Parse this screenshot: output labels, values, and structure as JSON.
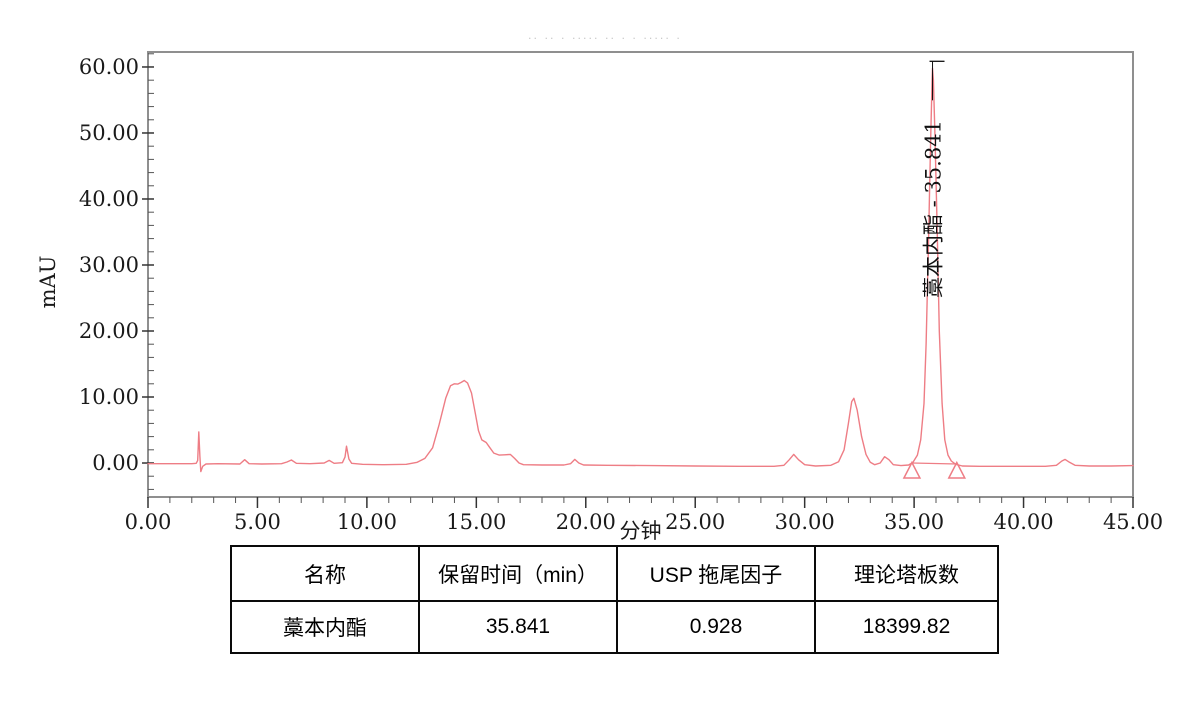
{
  "page": {
    "faint_header": "·· ·· · ····· ·· ·  ·   ····· ·"
  },
  "chart_data": {
    "type": "line",
    "title": "",
    "xlabel": "分钟",
    "ylabel": "mAU",
    "xlim": [
      0,
      45
    ],
    "ylim": [
      -5.15,
      62.27
    ],
    "grid": false,
    "legend": "none",
    "frame_color": "#8f8f8f",
    "trace_color": "#ee7d85",
    "x_major_ticks": [
      0,
      5,
      10,
      15,
      20,
      25,
      30,
      35,
      40,
      45
    ],
    "x_tick_labels": [
      "0.00",
      "5.00",
      "10.00",
      "15.00",
      "20.00",
      "25.00",
      "30.00",
      "35.00",
      "40.00",
      "45.00"
    ],
    "x_minor_step": 1,
    "y_major_ticks": [
      0,
      10,
      20,
      30,
      40,
      50,
      60
    ],
    "y_tick_labels": [
      "0.00",
      "10.00",
      "20.00",
      "30.00",
      "40.00",
      "50.00",
      "60.00"
    ],
    "y_minor_step": 2,
    "peak": {
      "label": "藁本内酯 - 35.841",
      "name": "藁本内酯",
      "retention_min": 35.841,
      "apex_mau": 59.8
    },
    "integration_markers": [
      {
        "t": 34.9
      },
      {
        "t": 36.95
      }
    ],
    "series": [
      {
        "name": "signal",
        "points": [
          [
            0,
            -0.1
          ],
          [
            1.0,
            -0.1
          ],
          [
            2.0,
            -0.1
          ],
          [
            2.2,
            -0.05
          ],
          [
            2.27,
            0.4
          ],
          [
            2.32,
            4.7
          ],
          [
            2.37,
            1.0
          ],
          [
            2.41,
            -1.3
          ],
          [
            2.5,
            -0.5
          ],
          [
            2.65,
            -0.15
          ],
          [
            3.2,
            -0.1
          ],
          [
            4.2,
            -0.15
          ],
          [
            4.42,
            0.5
          ],
          [
            4.62,
            -0.1
          ],
          [
            5.2,
            -0.15
          ],
          [
            6.1,
            -0.1
          ],
          [
            6.35,
            0.15
          ],
          [
            6.55,
            0.45
          ],
          [
            6.78,
            -0.05
          ],
          [
            7.4,
            -0.1
          ],
          [
            8.05,
            0.0
          ],
          [
            8.28,
            0.4
          ],
          [
            8.5,
            -0.05
          ],
          [
            8.88,
            0.05
          ],
          [
            9.0,
            0.9
          ],
          [
            9.07,
            2.55
          ],
          [
            9.18,
            0.6
          ],
          [
            9.3,
            -0.05
          ],
          [
            9.8,
            -0.2
          ],
          [
            10.8,
            -0.25
          ],
          [
            11.8,
            -0.2
          ],
          [
            12.3,
            0.1
          ],
          [
            12.65,
            0.7
          ],
          [
            13.0,
            2.3
          ],
          [
            13.3,
            5.8
          ],
          [
            13.6,
            9.8
          ],
          [
            13.82,
            11.7
          ],
          [
            14.0,
            12.0
          ],
          [
            14.15,
            11.95
          ],
          [
            14.3,
            12.2
          ],
          [
            14.45,
            12.5
          ],
          [
            14.6,
            12.1
          ],
          [
            14.78,
            10.6
          ],
          [
            14.95,
            7.6
          ],
          [
            15.1,
            4.9
          ],
          [
            15.25,
            3.5
          ],
          [
            15.45,
            3.1
          ],
          [
            15.6,
            2.4
          ],
          [
            15.8,
            1.5
          ],
          [
            16.05,
            1.2
          ],
          [
            16.3,
            1.25
          ],
          [
            16.55,
            1.3
          ],
          [
            16.75,
            0.7
          ],
          [
            16.95,
            0.0
          ],
          [
            17.15,
            -0.25
          ],
          [
            18.0,
            -0.3
          ],
          [
            19.0,
            -0.3
          ],
          [
            19.3,
            -0.1
          ],
          [
            19.5,
            0.55
          ],
          [
            19.68,
            0.0
          ],
          [
            19.9,
            -0.3
          ],
          [
            21.0,
            -0.35
          ],
          [
            23.0,
            -0.4
          ],
          [
            25.0,
            -0.45
          ],
          [
            27.0,
            -0.5
          ],
          [
            28.6,
            -0.5
          ],
          [
            29.05,
            -0.35
          ],
          [
            29.3,
            0.5
          ],
          [
            29.5,
            1.3
          ],
          [
            29.72,
            0.5
          ],
          [
            30.0,
            -0.25
          ],
          [
            30.5,
            -0.45
          ],
          [
            31.2,
            -0.35
          ],
          [
            31.55,
            0.2
          ],
          [
            31.8,
            2.0
          ],
          [
            32.0,
            6.0
          ],
          [
            32.15,
            9.3
          ],
          [
            32.25,
            9.8
          ],
          [
            32.4,
            8.0
          ],
          [
            32.6,
            4.0
          ],
          [
            32.8,
            1.3
          ],
          [
            33.0,
            0.1
          ],
          [
            33.2,
            -0.25
          ],
          [
            33.45,
            0.0
          ],
          [
            33.65,
            0.95
          ],
          [
            33.85,
            0.5
          ],
          [
            34.05,
            -0.25
          ],
          [
            34.4,
            -0.4
          ],
          [
            34.75,
            -0.3
          ],
          [
            34.95,
            0.1
          ],
          [
            35.15,
            1.2
          ],
          [
            35.3,
            3.5
          ],
          [
            35.45,
            9
          ],
          [
            35.55,
            18
          ],
          [
            35.65,
            32
          ],
          [
            35.75,
            48
          ],
          [
            35.82,
            58
          ],
          [
            35.841,
            59.8
          ],
          [
            35.88,
            58
          ],
          [
            35.95,
            50
          ],
          [
            36.05,
            36
          ],
          [
            36.15,
            20
          ],
          [
            36.28,
            9
          ],
          [
            36.4,
            3.5
          ],
          [
            36.55,
            1.2
          ],
          [
            36.7,
            0.3
          ],
          [
            36.9,
            -0.2
          ],
          [
            37.2,
            -0.45
          ],
          [
            38.0,
            -0.5
          ],
          [
            39.5,
            -0.5
          ],
          [
            41.0,
            -0.5
          ],
          [
            41.5,
            -0.35
          ],
          [
            41.75,
            0.3
          ],
          [
            41.9,
            0.55
          ],
          [
            42.1,
            0.1
          ],
          [
            42.35,
            -0.35
          ],
          [
            43.0,
            -0.45
          ],
          [
            44.0,
            -0.45
          ],
          [
            45.0,
            -0.4
          ]
        ]
      }
    ]
  },
  "table": {
    "headers": [
      "名称",
      "保留时间（min）",
      "USP 拖尾因子",
      "理论塔板数"
    ],
    "rows": [
      [
        "藁本内酯",
        "35.841",
        "0.928",
        "18399.82"
      ]
    ]
  }
}
